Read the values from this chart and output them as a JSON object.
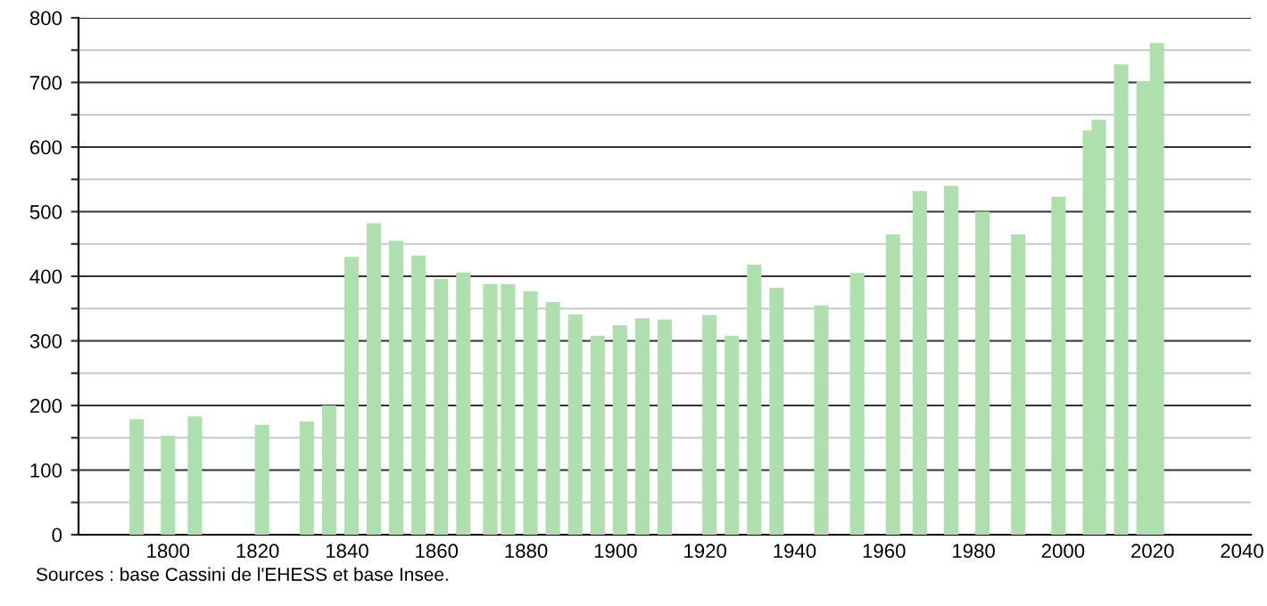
{
  "chart_data": {
    "type": "bar",
    "x": [
      1793,
      1800,
      1806,
      1821,
      1831,
      1836,
      1841,
      1846,
      1851,
      1856,
      1861,
      1866,
      1872,
      1876,
      1881,
      1886,
      1891,
      1896,
      1901,
      1906,
      1911,
      1921,
      1926,
      1931,
      1936,
      1946,
      1954,
      1962,
      1968,
      1975,
      1982,
      1990,
      1999,
      2006,
      2008,
      2013,
      2018,
      2021
    ],
    "series": [
      {
        "color": "#aee0ae",
        "values": [
          179,
          153,
          183,
          170,
          175,
          200,
          430,
          482,
          455,
          432,
          396,
          406,
          388,
          388,
          377,
          360,
          341,
          308,
          324,
          335,
          333,
          340,
          308,
          418,
          382,
          355,
          405,
          465,
          532,
          540,
          500,
          465,
          523,
          626,
          642,
          728,
          702,
          761
        ]
      }
    ],
    "xlim": [
      1780,
      2042
    ],
    "xticks": [
      1800,
      1820,
      1840,
      1860,
      1880,
      1900,
      1920,
      1940,
      1960,
      1980,
      2000,
      2020,
      2040
    ],
    "ylim": [
      0,
      800
    ],
    "yticks": [
      0,
      {
        "value": 50,
        "label": null
      },
      100,
      {
        "value": 150,
        "label": null
      },
      200,
      {
        "value": 250,
        "label": null
      },
      300,
      {
        "value": 350,
        "label": null
      },
      400,
      {
        "value": 450,
        "label": null
      },
      500,
      {
        "value": 550,
        "label": null
      },
      600,
      {
        "value": 650,
        "label": null
      },
      700,
      {
        "value": 750,
        "label": null
      },
      800
    ],
    "grid": "y",
    "annotations": [
      "Sources : base Cassini de l'EHESS et base Insee."
    ]
  }
}
